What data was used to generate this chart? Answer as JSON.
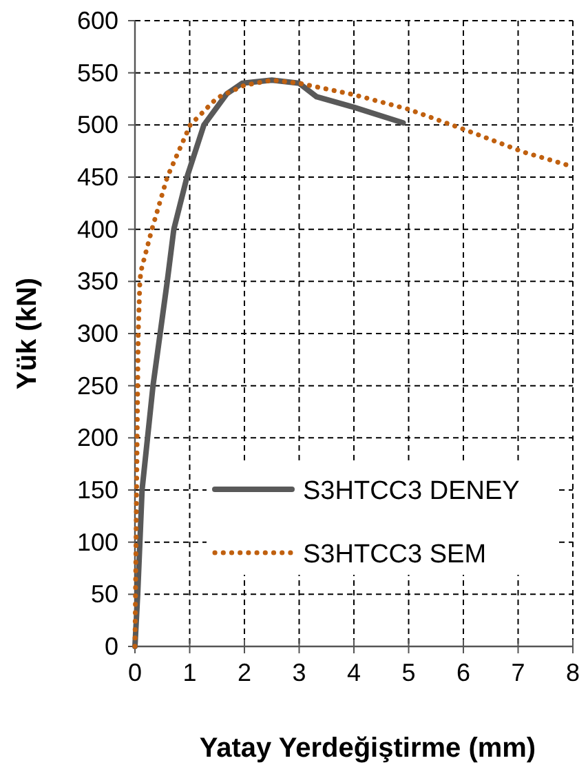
{
  "chart_data": {
    "type": "line",
    "xlabel": "Yatay Yerdeğiştirme (mm)",
    "ylabel": "Yük (kN)",
    "xlim": [
      0,
      8
    ],
    "xticks": [
      0,
      1,
      2,
      3,
      4,
      5,
      6,
      7,
      8
    ],
    "ylim": [
      0,
      600
    ],
    "yticks": [
      0,
      50,
      100,
      150,
      200,
      250,
      300,
      350,
      400,
      450,
      500,
      550,
      600
    ],
    "grid": true,
    "legend": "right",
    "series": [
      {
        "name": "S3HTCC3 DENEY",
        "color": "#595959",
        "line_style": "solid",
        "x": [
          0,
          0.05,
          0.13,
          0.33,
          0.59,
          0.71,
          0.95,
          1.26,
          1.68,
          1.96,
          2.5,
          3.0,
          3.32,
          4.0,
          4.9
        ],
        "values": [
          0,
          50,
          150,
          250,
          350,
          400,
          450,
          500,
          530,
          540,
          543,
          540,
          527,
          517,
          502
        ]
      },
      {
        "name": "S3HTCC3 SEM",
        "color": "#c0600f",
        "line_style": "dotted",
        "x": [
          0,
          0.02,
          0.04,
          0.06,
          0.09,
          0.11,
          0.31,
          0.59,
          1.01,
          1.5,
          2.0,
          2.5,
          3.0,
          4.0,
          5.0,
          6.05,
          7.1,
          8
        ],
        "values": [
          0,
          100,
          200,
          300,
          350,
          360,
          400,
          450,
          500,
          526,
          538,
          543,
          540,
          529,
          515,
          495,
          474,
          460
        ]
      }
    ]
  }
}
